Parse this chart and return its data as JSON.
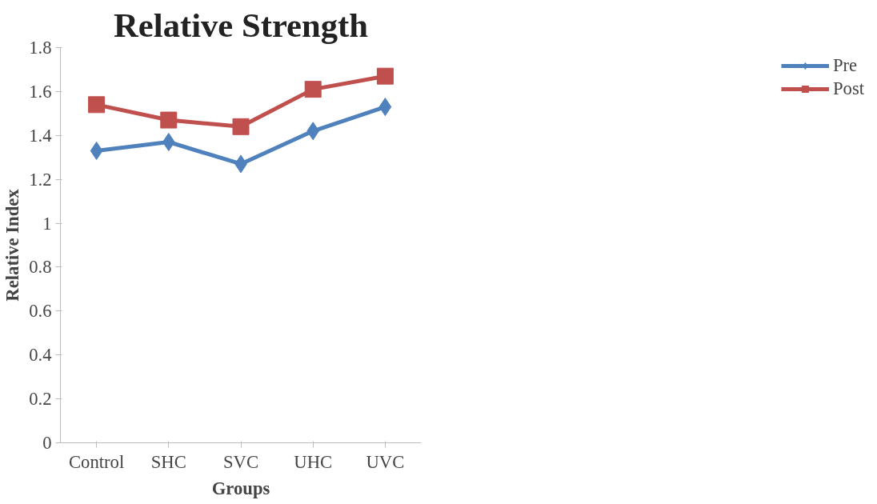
{
  "chart_data": {
    "type": "line",
    "title": "Relative Strength",
    "xlabel": "Groups",
    "ylabel": "Relative Index",
    "categories": [
      "Control",
      "SHC",
      "SVC",
      "UHC",
      "UVC"
    ],
    "series": [
      {
        "name": "Pre",
        "color": "#4f81bd",
        "marker": "diamond",
        "values": [
          1.33,
          1.37,
          1.27,
          1.42,
          1.53
        ]
      },
      {
        "name": "Post",
        "color": "#c0504d",
        "marker": "square",
        "values": [
          1.54,
          1.47,
          1.44,
          1.61,
          1.67
        ]
      }
    ],
    "ylim": [
      0,
      1.8
    ],
    "yticks": [
      0,
      0.2,
      0.4,
      0.6,
      0.8,
      1,
      1.2,
      1.4,
      1.6,
      1.8
    ],
    "grid": false,
    "legend": "right"
  }
}
